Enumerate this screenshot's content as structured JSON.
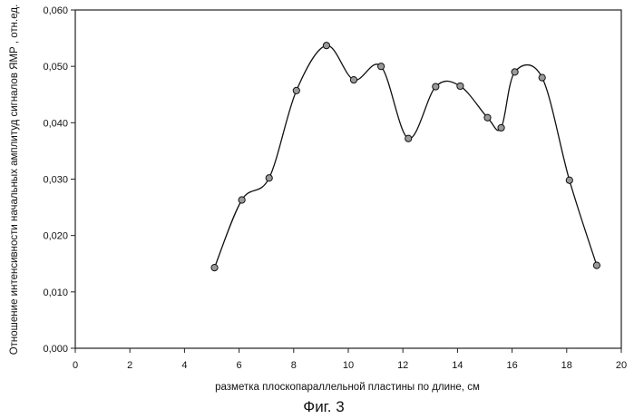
{
  "chart_data": {
    "type": "line",
    "title": "",
    "xlabel": "разметка плоскопараллельной пластины по длине, см",
    "ylabel": "Отношение интенсивности начальных амплитуд сигналов ЯМР , отн.ед.",
    "xlim": [
      0,
      20
    ],
    "ylim": [
      0,
      0.06
    ],
    "x_ticks": [
      "0",
      "2",
      "4",
      "6",
      "8",
      "10",
      "12",
      "14",
      "16",
      "18",
      "20"
    ],
    "y_ticks": [
      "0,000",
      "0,010",
      "0,020",
      "0,030",
      "0,040",
      "0,050",
      "0,060"
    ],
    "grid": false,
    "smooth": true,
    "series": [
      {
        "x": [
          5.1,
          6.1,
          7.1,
          8.1,
          9.2,
          10.2,
          11.2,
          12.2,
          13.2,
          14.1,
          15.1,
          15.6,
          16.1,
          17.1,
          18.1,
          19.1
        ],
        "y": [
          0.0143,
          0.0263,
          0.0302,
          0.0457,
          0.0537,
          0.0476,
          0.05,
          0.0372,
          0.0464,
          0.0465,
          0.0409,
          0.0391,
          0.049,
          0.048,
          0.0298,
          0.0147
        ]
      }
    ],
    "caption": "Фиг. 3"
  }
}
